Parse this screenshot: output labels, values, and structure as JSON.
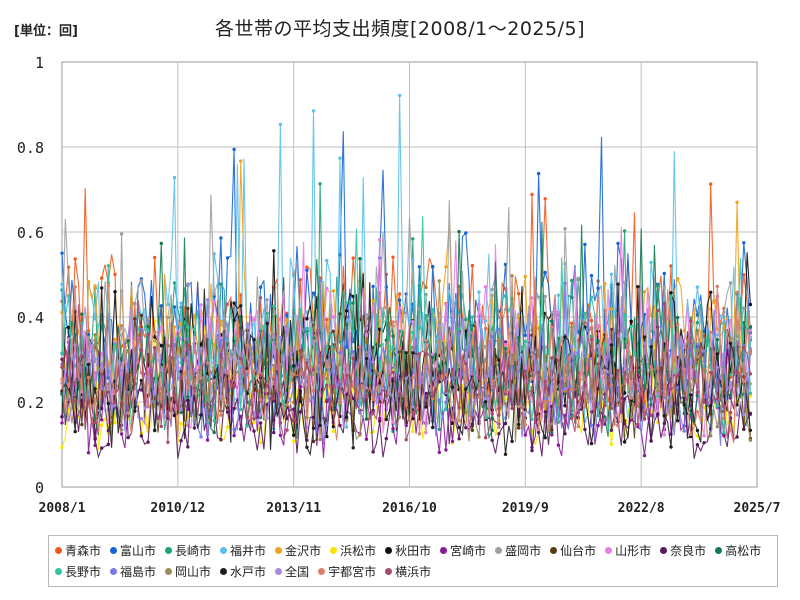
{
  "chart_data": {
    "type": "line",
    "title": "各世帯の平均支出頻度[2008/1～2025/5]",
    "unit_label": "[単位：回]",
    "ylim": [
      0,
      1
    ],
    "y_ticks": [
      "0",
      "0.2",
      "0.4",
      "0.6",
      "0.8",
      "1"
    ],
    "x_ticks": [
      "2008/1",
      "2010/12",
      "2013/11",
      "2016/10",
      "2019/9",
      "2022/8",
      "2025/7"
    ],
    "x_start": "2008-01",
    "x_end": "2025-07",
    "legend_position": "bottom",
    "series": [
      {
        "name": "青森市",
        "color": "#f05a1e",
        "base": 0.36,
        "amp": 0.12,
        "peak": 0.77
      },
      {
        "name": "富山市",
        "color": "#1565d8",
        "base": 0.38,
        "amp": 0.14,
        "peak": 0.92
      },
      {
        "name": "長崎市",
        "color": "#1fa37a",
        "base": 0.3,
        "amp": 0.12,
        "peak": 0.73
      },
      {
        "name": "福井市",
        "color": "#5bc0eb",
        "base": 0.34,
        "amp": 0.13,
        "peak": 0.95
      },
      {
        "name": "金沢市",
        "color": "#f0a21e",
        "base": 0.33,
        "amp": 0.12,
        "peak": 0.79
      },
      {
        "name": "浜松市",
        "color": "#f7e600",
        "base": 0.2,
        "amp": 0.07,
        "peak": 0.4
      },
      {
        "name": "秋田市",
        "color": "#111111",
        "base": 0.28,
        "amp": 0.11,
        "peak": 0.56
      },
      {
        "name": "宮崎市",
        "color": "#8a1a9b",
        "base": 0.18,
        "amp": 0.07,
        "peak": 0.38
      },
      {
        "name": "盛岡市",
        "color": "#9e9e9e",
        "base": 0.33,
        "amp": 0.12,
        "peak": 0.74
      },
      {
        "name": "仙台市",
        "color": "#5c3a12",
        "base": 0.25,
        "amp": 0.09,
        "peak": 0.5
      },
      {
        "name": "山形市",
        "color": "#e87ee6",
        "base": 0.3,
        "amp": 0.11,
        "peak": 0.63
      },
      {
        "name": "奈良市",
        "color": "#5a1a5e",
        "base": 0.17,
        "amp": 0.07,
        "peak": 0.35
      },
      {
        "name": "高松市",
        "color": "#127a50",
        "base": 0.27,
        "amp": 0.1,
        "peak": 0.66
      },
      {
        "name": "長野市",
        "color": "#2ec4a0",
        "base": 0.3,
        "amp": 0.11,
        "peak": 0.64
      },
      {
        "name": "福島市",
        "color": "#7a7ae6",
        "base": 0.24,
        "amp": 0.09,
        "peak": 0.5
      },
      {
        "name": "岡山市",
        "color": "#9c8a5a",
        "base": 0.24,
        "amp": 0.09,
        "peak": 0.52
      },
      {
        "name": "水戸市",
        "color": "#1e1e1e",
        "base": 0.22,
        "amp": 0.09,
        "peak": 0.49
      },
      {
        "name": "全国",
        "color": "#a58be0",
        "base": 0.26,
        "amp": 0.08,
        "peak": 0.45
      },
      {
        "name": "宇都宮市",
        "color": "#d9806a",
        "base": 0.25,
        "amp": 0.09,
        "peak": 0.5
      },
      {
        "name": "横浜市",
        "color": "#a84a6a",
        "base": 0.23,
        "amp": 0.08,
        "peak": 0.45
      }
    ]
  }
}
